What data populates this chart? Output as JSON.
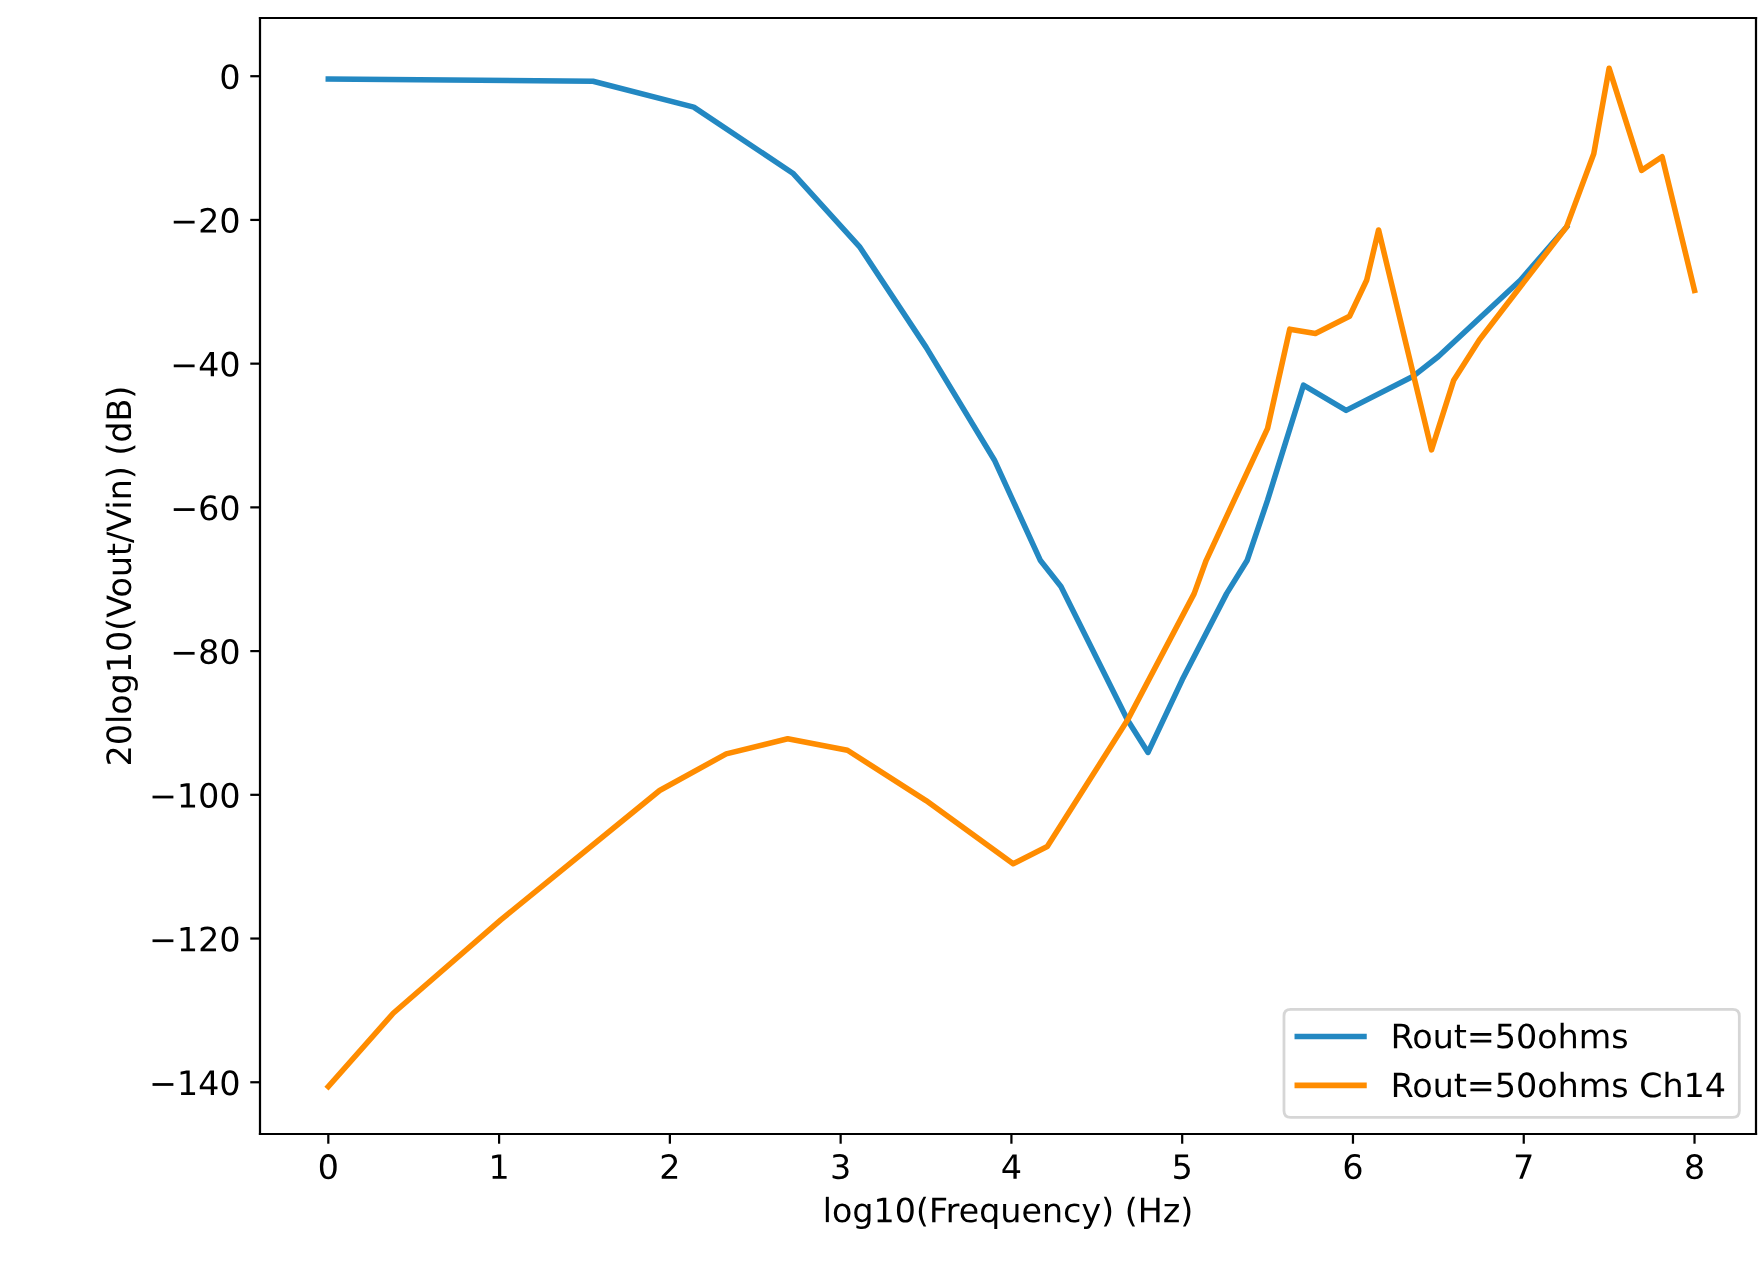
{
  "chart_data": {
    "type": "line",
    "xlabel": "log10(Frequency) (Hz)",
    "ylabel": "20log10(Vout/Vin) (dB)",
    "xlim": [
      -0.4,
      8.36
    ],
    "ylim": [
      -147.2,
      8.1
    ],
    "xticks": [
      0,
      1,
      2,
      3,
      4,
      5,
      6,
      7,
      8
    ],
    "yticks": [
      -140,
      -120,
      -100,
      -80,
      -60,
      -40,
      -20,
      0
    ],
    "grid": false,
    "legend": "bottom right",
    "marker": "none",
    "line_style": "solid",
    "series": [
      {
        "name": "Rout=50ohms",
        "color": "#2388c2",
        "x": [
          0,
          1.55,
          2.14,
          2.72,
          3.11,
          3.5,
          3.9,
          4.17,
          4.29,
          4.68,
          4.8,
          5.0,
          5.26,
          5.38,
          5.5,
          5.71,
          5.96,
          6.35,
          6.5,
          6.98,
          7.25
        ],
        "values": [
          -0.4,
          -0.7,
          -4.3,
          -13.5,
          -23.7,
          -37.7,
          -53.4,
          -67.4,
          -71,
          -89.6,
          -94.1,
          -84,
          -72,
          -67.4,
          -59,
          -43,
          -46.5,
          -41.8,
          -39,
          -28.4,
          -21
        ]
      },
      {
        "name": "Rout=50ohms Ch14",
        "color": "#ff8c00",
        "x": [
          0,
          0.38,
          1.01,
          1.94,
          2.33,
          2.69,
          3.04,
          3.5,
          4.01,
          4.21,
          4.68,
          5.07,
          5.14,
          5.5,
          5.63,
          5.78,
          5.98,
          6.08,
          6.15,
          6.46,
          6.59,
          6.74,
          6.98,
          7.25,
          7.41,
          7.5,
          7.69,
          7.81,
          8.0
        ],
        "values": [
          -140.6,
          -130.4,
          -117.4,
          -99.4,
          -94.3,
          -92.2,
          -93.8,
          -100.8,
          -109.6,
          -107.2,
          -89.6,
          -72,
          -67.4,
          -49,
          -35.2,
          -35.8,
          -33.4,
          -28.4,
          -21.4,
          -52,
          -42.3,
          -36.7,
          -29.3,
          -21,
          -10.8,
          1.1,
          -13.1,
          -11.2,
          -29.8
        ]
      }
    ]
  }
}
